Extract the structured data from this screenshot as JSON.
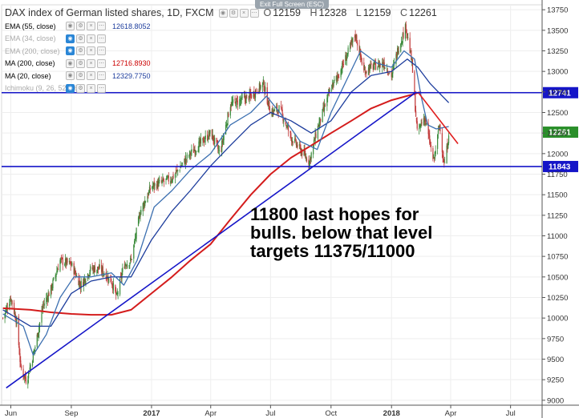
{
  "header": {
    "title": "DAX index of German listed shares, 1D, FXCM",
    "open_label": "O",
    "open": "12159",
    "high_label": "H",
    "high": "12328",
    "low_label": "L",
    "low": "12159",
    "close_label": "C",
    "close": "12261",
    "exit_fullscreen": "Exit Full Screen (ESC)"
  },
  "indicators": [
    {
      "label": "EMA (55, close)",
      "value": "12618.8052",
      "color": "#1c3c9c",
      "visible": true
    },
    {
      "label": "EMA (34, close)",
      "value": "",
      "color": "#1c3c9c",
      "visible": false
    },
    {
      "label": "EMA (200, close)",
      "value": "",
      "color": "#1c3c9c",
      "visible": false
    },
    {
      "label": "MA (200, close)",
      "value": "12716.8930",
      "color": "#cc0000",
      "visible": true
    },
    {
      "label": "MA (20, close)",
      "value": "12329.7750",
      "color": "#1c3c9c",
      "visible": true
    },
    {
      "label": "Ichimoku (9, 26, 52, 26)",
      "value": "",
      "color": "#1c3c9c",
      "visible": false
    }
  ],
  "annotation": "11800 last hopes for bulls. below that level targets 11375/11000",
  "chart_data": {
    "type": "candlestick",
    "x_ticks": [
      {
        "label": "Jun",
        "date": "2016-06-01"
      },
      {
        "label": "Sep",
        "date": "2016-09-01"
      },
      {
        "label": "2017",
        "date": "2017-01-01",
        "bold": true
      },
      {
        "label": "Apr",
        "date": "2017-04-01"
      },
      {
        "label": "Jul",
        "date": "2017-07-01"
      },
      {
        "label": "Oct",
        "date": "2017-10-01"
      },
      {
        "label": "2018",
        "date": "2018-01-01",
        "bold": true
      },
      {
        "label": "Apr",
        "date": "2018-04-01"
      },
      {
        "label": "Jul",
        "date": "2018-07-01"
      }
    ],
    "y_ticks": [
      9000,
      9250,
      9500,
      9750,
      10000,
      10250,
      10500,
      10750,
      11000,
      11250,
      11500,
      11750,
      12000,
      12250,
      12500,
      12750,
      13000,
      13250,
      13500,
      13750
    ],
    "ylim": [
      8940,
      13810
    ],
    "xlim": [
      "2016-05-18",
      "2018-08-18"
    ],
    "price_path": [
      [
        "2016-05-20",
        10000
      ],
      [
        "2016-06-01",
        10250
      ],
      [
        "2016-06-10",
        9950
      ],
      [
        "2016-06-16",
        9400
      ],
      [
        "2016-06-24",
        9250
      ],
      [
        "2016-06-27",
        9300
      ],
      [
        "2016-07-08",
        9650
      ],
      [
        "2016-07-20",
        10150
      ],
      [
        "2016-08-01",
        10350
      ],
      [
        "2016-08-15",
        10700
      ],
      [
        "2016-09-01",
        10650
      ],
      [
        "2016-09-15",
        10400
      ],
      [
        "2016-10-01",
        10600
      ],
      [
        "2016-10-15",
        10600
      ],
      [
        "2016-11-01",
        10450
      ],
      [
        "2016-11-09",
        10250
      ],
      [
        "2016-11-20",
        10650
      ],
      [
        "2016-12-01",
        10700
      ],
      [
        "2016-12-15",
        11300
      ],
      [
        "2017-01-01",
        11600
      ],
      [
        "2017-02-01",
        11700
      ],
      [
        "2017-03-01",
        12000
      ],
      [
        "2017-04-01",
        12250
      ],
      [
        "2017-04-15",
        12000
      ],
      [
        "2017-05-01",
        12600
      ],
      [
        "2017-06-01",
        12700
      ],
      [
        "2017-06-20",
        12850
      ],
      [
        "2017-07-01",
        12500
      ],
      [
        "2017-07-15",
        12550
      ],
      [
        "2017-08-01",
        12200
      ],
      [
        "2017-08-29",
        11900
      ],
      [
        "2017-09-10",
        12300
      ],
      [
        "2017-10-01",
        12800
      ],
      [
        "2017-10-15",
        13000
      ],
      [
        "2017-11-07",
        13450
      ],
      [
        "2017-11-20",
        13000
      ],
      [
        "2017-12-01",
        13050
      ],
      [
        "2017-12-20",
        13100
      ],
      [
        "2018-01-01",
        12950
      ],
      [
        "2018-01-10",
        13250
      ],
      [
        "2018-01-23",
        13550
      ],
      [
        "2018-02-01",
        13100
      ],
      [
        "2018-02-09",
        12250
      ],
      [
        "2018-02-20",
        12450
      ],
      [
        "2018-03-01",
        12100
      ],
      [
        "2018-03-06",
        11900
      ],
      [
        "2018-03-15",
        12350
      ],
      [
        "2018-03-22",
        11850
      ],
      [
        "2018-03-27",
        12100
      ],
      [
        "2018-03-29",
        12261
      ]
    ],
    "ma20_path": [
      [
        "2016-05-20",
        10050
      ],
      [
        "2016-06-20",
        9900
      ],
      [
        "2016-07-05",
        9550
      ],
      [
        "2016-07-25",
        9800
      ],
      [
        "2016-08-15",
        10250
      ],
      [
        "2016-09-05",
        10500
      ],
      [
        "2016-10-01",
        10500
      ],
      [
        "2016-11-01",
        10550
      ],
      [
        "2016-11-20",
        10400
      ],
      [
        "2016-12-10",
        10700
      ],
      [
        "2017-01-05",
        11350
      ],
      [
        "2017-02-01",
        11550
      ],
      [
        "2017-03-01",
        11800
      ],
      [
        "2017-04-01",
        12000
      ],
      [
        "2017-05-01",
        12350
      ],
      [
        "2017-06-01",
        12500
      ],
      [
        "2017-06-25",
        12700
      ],
      [
        "2017-07-15",
        12500
      ],
      [
        "2017-08-15",
        12150
      ],
      [
        "2017-09-10",
        12050
      ],
      [
        "2017-10-01",
        12500
      ],
      [
        "2017-10-25",
        12900
      ],
      [
        "2017-11-15",
        13250
      ],
      [
        "2017-12-10",
        13100
      ],
      [
        "2018-01-01",
        13050
      ],
      [
        "2018-01-20",
        13250
      ],
      [
        "2018-02-05",
        13150
      ],
      [
        "2018-02-15",
        12700
      ],
      [
        "2018-02-25",
        12350
      ],
      [
        "2018-03-10",
        12300
      ],
      [
        "2018-03-29",
        12330
      ]
    ],
    "ema55_path": [
      [
        "2016-05-20",
        10100
      ],
      [
        "2016-07-01",
        9900
      ],
      [
        "2016-08-01",
        9900
      ],
      [
        "2016-09-01",
        10300
      ],
      [
        "2016-10-01",
        10450
      ],
      [
        "2016-11-01",
        10500
      ],
      [
        "2016-12-01",
        10500
      ],
      [
        "2017-01-01",
        10950
      ],
      [
        "2017-02-01",
        11300
      ],
      [
        "2017-03-01",
        11550
      ],
      [
        "2017-04-01",
        11850
      ],
      [
        "2017-05-01",
        12100
      ],
      [
        "2017-06-01",
        12350
      ],
      [
        "2017-07-01",
        12500
      ],
      [
        "2017-08-01",
        12400
      ],
      [
        "2017-09-01",
        12250
      ],
      [
        "2017-10-01",
        12400
      ],
      [
        "2017-11-01",
        12750
      ],
      [
        "2017-12-01",
        12950
      ],
      [
        "2018-01-01",
        13000
      ],
      [
        "2018-01-25",
        13150
      ],
      [
        "2018-02-10",
        13050
      ],
      [
        "2018-03-01",
        12850
      ],
      [
        "2018-03-29",
        12619
      ]
    ],
    "ma200_path": [
      [
        "2016-05-20",
        10120
      ],
      [
        "2016-07-01",
        10100
      ],
      [
        "2016-08-01",
        10070
      ],
      [
        "2016-09-01",
        10050
      ],
      [
        "2016-10-01",
        10040
      ],
      [
        "2016-11-01",
        10040
      ],
      [
        "2016-12-01",
        10100
      ],
      [
        "2017-01-01",
        10300
      ],
      [
        "2017-02-01",
        10500
      ],
      [
        "2017-03-01",
        10700
      ],
      [
        "2017-04-01",
        10900
      ],
      [
        "2017-05-01",
        11200
      ],
      [
        "2017-06-01",
        11500
      ],
      [
        "2017-07-01",
        11750
      ],
      [
        "2017-08-01",
        11950
      ],
      [
        "2017-09-01",
        12100
      ],
      [
        "2017-10-01",
        12250
      ],
      [
        "2017-11-01",
        12400
      ],
      [
        "2017-12-01",
        12550
      ],
      [
        "2018-01-01",
        12650
      ],
      [
        "2018-02-01",
        12717
      ],
      [
        "2018-02-15",
        12750
      ]
    ],
    "trend_line_blue": [
      [
        "2016-05-25",
        9150
      ],
      [
        "2018-02-08",
        12750
      ]
    ],
    "trend_line_red": [
      [
        "2018-02-10",
        12750
      ],
      [
        "2018-04-12",
        12120
      ]
    ],
    "horizontal_lines": [
      {
        "value": 12741,
        "label": "12741",
        "color": "#1515c8"
      },
      {
        "value": 11843,
        "label": "11843",
        "color": "#1515c8"
      }
    ],
    "last_price": {
      "value": 12261,
      "label": "12261",
      "color": "#2a8f2a"
    }
  }
}
